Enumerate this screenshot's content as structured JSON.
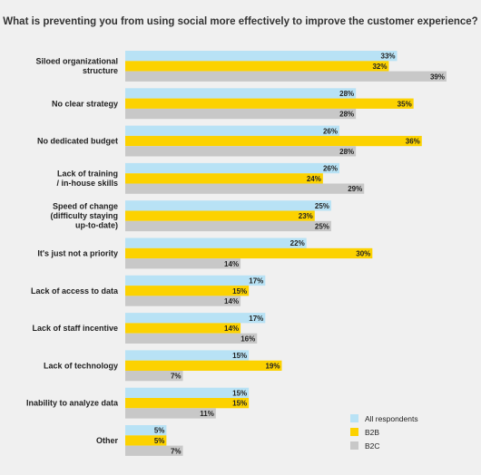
{
  "chart_data": {
    "type": "bar",
    "orientation": "horizontal",
    "title": "What is preventing you from using social more effectively to improve the customer experience?",
    "categories": [
      [
        "Siloed organizational",
        "structure"
      ],
      [
        "No clear strategy"
      ],
      [
        "No dedicated budget"
      ],
      [
        "Lack of training",
        "/ in-house skills"
      ],
      [
        "Speed of change",
        "(difficulty staying",
        "up-to-date)"
      ],
      [
        "It's just not a priority"
      ],
      [
        "Lack of access to data"
      ],
      [
        "Lack of staff incentive"
      ],
      [
        "Lack of technology"
      ],
      [
        "Inability to analyze data"
      ],
      [
        "Other"
      ]
    ],
    "series": [
      {
        "name": "All respondents",
        "color": "#b8e2f5",
        "values": [
          33,
          28,
          26,
          26,
          25,
          22,
          17,
          17,
          15,
          15,
          5
        ]
      },
      {
        "name": "B2B",
        "color": "#fcd200",
        "values": [
          32,
          35,
          36,
          24,
          23,
          30,
          15,
          14,
          19,
          15,
          5
        ]
      },
      {
        "name": "B2C",
        "color": "#c8c8c8",
        "values": [
          39,
          28,
          28,
          29,
          25,
          14,
          14,
          16,
          7,
          11,
          7
        ]
      }
    ],
    "value_suffix": "%",
    "xlim": [
      0,
      39
    ],
    "grid": false,
    "legend_position": "bottom-right"
  }
}
